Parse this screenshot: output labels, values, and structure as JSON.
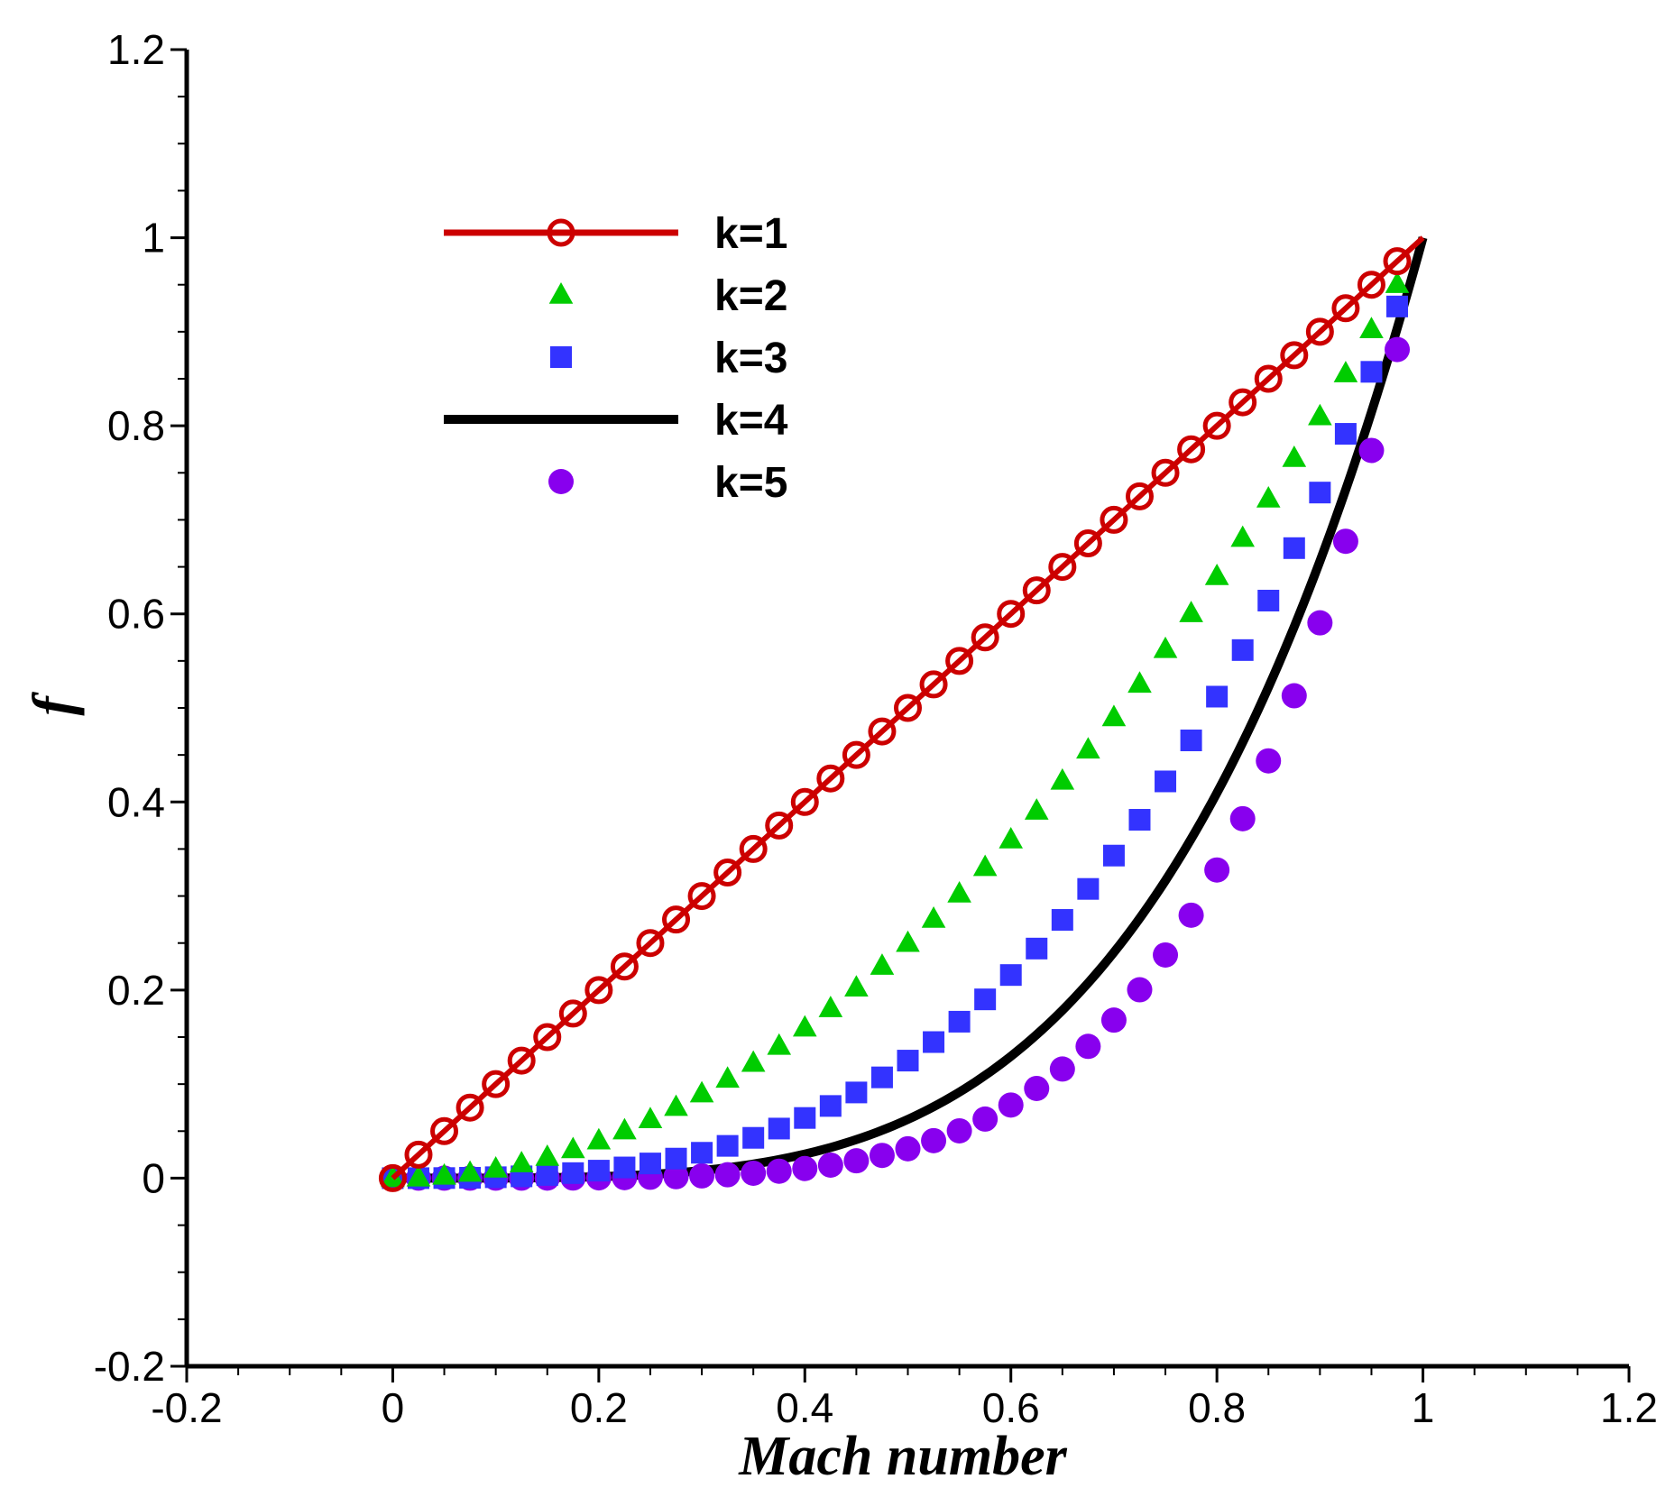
{
  "chart_data": {
    "type": "line",
    "title": "",
    "xlabel": "Mach number",
    "ylabel": "f",
    "xlim": [
      -0.2,
      1.2
    ],
    "ylim": [
      -0.2,
      1.2
    ],
    "grid": false,
    "legend_position": "top-left",
    "x_ticks": [
      "-0.2",
      "0",
      "0.2",
      "0.4",
      "0.6",
      "0.8",
      "1",
      "1.2"
    ],
    "y_ticks": [
      "-0.2",
      "0",
      "0.2",
      "0.4",
      "0.6",
      "0.8",
      "1",
      "1.2"
    ],
    "marker_x_start": 0,
    "marker_x_step": 0.025,
    "marker_count": 40,
    "series": [
      {
        "name": "k=1",
        "exponent": 1,
        "style": "line+open-circle",
        "color": "#cc0000"
      },
      {
        "name": "k=2",
        "exponent": 2,
        "style": "triangle",
        "color": "#00cc00"
      },
      {
        "name": "k=3",
        "exponent": 3,
        "style": "square",
        "color": "#3333ff"
      },
      {
        "name": "k=4",
        "exponent": 4,
        "style": "line",
        "color": "#000000"
      },
      {
        "name": "k=5",
        "exponent": 5,
        "style": "filled-circle",
        "color": "#8800ee"
      }
    ],
    "function": "f = M^k",
    "x_range_data": [
      0,
      1
    ]
  }
}
